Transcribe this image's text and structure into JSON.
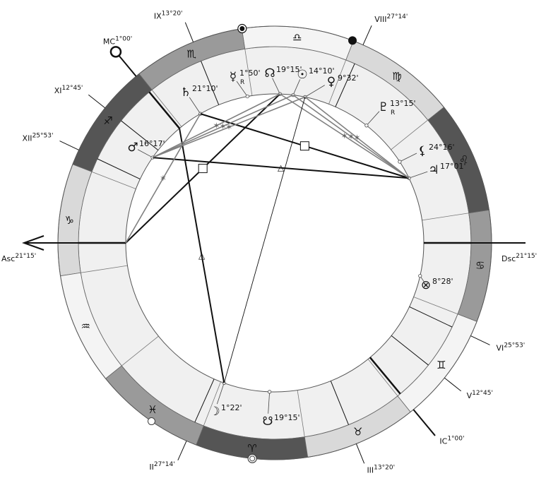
{
  "colors": {
    "fire": "#555555",
    "earth": "#d9d9d9",
    "air": "#f4f4f4",
    "water": "#9a9a9a",
    "house_ring": "#f0f0f0",
    "line": "#111111",
    "sextile": "#808080"
  },
  "signs": [
    {
      "name": "Aries",
      "glyph": "♈",
      "element": "fire"
    },
    {
      "name": "Taurus",
      "glyph": "♉",
      "element": "earth"
    },
    {
      "name": "Gemini",
      "glyph": "♊",
      "element": "air"
    },
    {
      "name": "Cancer",
      "glyph": "♋",
      "element": "water"
    },
    {
      "name": "Leo",
      "glyph": "♌",
      "element": "fire"
    },
    {
      "name": "Virgo",
      "glyph": "♍",
      "element": "earth"
    },
    {
      "name": "Libra",
      "glyph": "♎",
      "element": "air"
    },
    {
      "name": "Scorpio",
      "glyph": "♏",
      "element": "water"
    },
    {
      "name": "Sagittarius",
      "glyph": "♐",
      "element": "fire"
    },
    {
      "name": "Capricorn",
      "glyph": "♑",
      "element": "earth"
    },
    {
      "name": "Aquarius",
      "glyph": "♒",
      "element": "air"
    },
    {
      "name": "Pisces",
      "glyph": "♓",
      "element": "water"
    }
  ],
  "ascendant_longitude": 291.25,
  "houses": [
    {
      "id": "asc",
      "label": "Asc",
      "degree": "21°15'",
      "longitude": 291.25
    },
    {
      "id": "ii",
      "label": "II",
      "degree": "27°14'",
      "longitude": 357.23
    },
    {
      "id": "iii",
      "label": "III",
      "degree": "13°20'",
      "longitude": 43.33
    },
    {
      "id": "ic",
      "label": "IC",
      "degree": "1°00'",
      "longitude": 61.0
    },
    {
      "id": "v",
      "label": "V",
      "degree": "12°45'",
      "longitude": 72.75
    },
    {
      "id": "vi",
      "label": "VI",
      "degree": "25°53'",
      "longitude": 85.88
    },
    {
      "id": "dsc",
      "label": "Dsc",
      "degree": "21°15'",
      "longitude": 111.25
    },
    {
      "id": "viii",
      "label": "VIII",
      "degree": "27°14'",
      "longitude": 177.23
    },
    {
      "id": "ix",
      "label": "IX",
      "degree": "13°20'",
      "longitude": 223.33
    },
    {
      "id": "mc",
      "label": "MC",
      "degree": "1°00'",
      "longitude": 241.0
    },
    {
      "id": "xi",
      "label": "XI",
      "degree": "12°45'",
      "longitude": 252.75
    },
    {
      "id": "xii",
      "label": "XII",
      "degree": "25°53'",
      "longitude": 265.88
    }
  ],
  "planets": [
    {
      "id": "saturn",
      "name": "Saturn",
      "glyph": "♄",
      "degree": "21°10'",
      "longitude": 231.17,
      "retrograde": ""
    },
    {
      "id": "mercury",
      "name": "Mercury",
      "glyph": "☿",
      "degree": "1°50'",
      "longitude": 211.83,
      "retrograde": "R"
    },
    {
      "id": "node",
      "name": "North Node",
      "glyph": "☊",
      "degree": "19°15'",
      "longitude": 199.25,
      "retrograde": ""
    },
    {
      "id": "sun",
      "name": "Sun",
      "glyph": "☉",
      "degree": "14°10'",
      "longitude": 194.17,
      "retrograde": ""
    },
    {
      "id": "venus",
      "name": "Venus",
      "glyph": "♀",
      "degree": "9°32'",
      "longitude": 189.53,
      "retrograde": ""
    },
    {
      "id": "pluto",
      "name": "Pluto",
      "glyph": "♇",
      "degree": "13°15'",
      "longitude": 163.25,
      "retrograde": "R"
    },
    {
      "id": "lilith",
      "name": "Lilith",
      "glyph": "⚸",
      "degree": "24°16'",
      "longitude": 144.27,
      "retrograde": ""
    },
    {
      "id": "jupiter",
      "name": "Jupiter",
      "glyph": "♃",
      "degree": "17°01'",
      "longitude": 137.02,
      "retrograde": ""
    },
    {
      "id": "mars",
      "name": "Mars",
      "glyph": "♂",
      "degree": "16°17'",
      "longitude": 256.28,
      "retrograde": ""
    },
    {
      "id": "fortune",
      "name": "Part of Fortune",
      "glyph": "⊗",
      "degree": "8°28'",
      "longitude": 98.47,
      "retrograde": ""
    },
    {
      "id": "moon",
      "name": "Moon",
      "glyph": "☽",
      "degree": "1°22'",
      "longitude": 1.37,
      "retrograde": ""
    },
    {
      "id": "snode",
      "name": "South Node",
      "glyph": "☋",
      "degree": "19°15'",
      "longitude": 19.25,
      "retrograde": ""
    }
  ],
  "aspects": [
    {
      "a": "mars",
      "b": "jupiter",
      "type": "trine",
      "symbol": "△"
    },
    {
      "a": "saturn",
      "b": "jupiter",
      "type": "square",
      "symbol": "□"
    },
    {
      "a": "asc",
      "b": "node",
      "type": "square",
      "symbol": "□"
    },
    {
      "a": "asc",
      "b": "saturn",
      "type": "sextile",
      "symbol": "✶"
    },
    {
      "a": "mc",
      "b": "moon",
      "type": "trine",
      "symbol": "△"
    },
    {
      "a": "mars",
      "b": "sun",
      "type": "sextile",
      "symbol": "✶"
    },
    {
      "a": "mars",
      "b": "node",
      "type": "sextile",
      "symbol": "✶"
    },
    {
      "a": "mars",
      "b": "venus",
      "type": "sextile",
      "symbol": "✶"
    },
    {
      "a": "jupiter",
      "b": "sun",
      "type": "sextile",
      "symbol": "✶"
    },
    {
      "a": "jupiter",
      "b": "node",
      "type": "sextile",
      "symbol": "✶"
    },
    {
      "a": "jupiter",
      "b": "venus",
      "type": "sextile",
      "symbol": "✶"
    },
    {
      "a": "venus",
      "b": "moon",
      "type": "opposition",
      "symbol": ""
    }
  ],
  "markers": [
    {
      "type": "filled-dot",
      "longitude": 180.25
    },
    {
      "type": "ringed-dot",
      "longitude": 209.9
    },
    {
      "type": "open-circle",
      "longitude": 346.6
    },
    {
      "type": "double-circle",
      "longitude": 15.3
    }
  ]
}
